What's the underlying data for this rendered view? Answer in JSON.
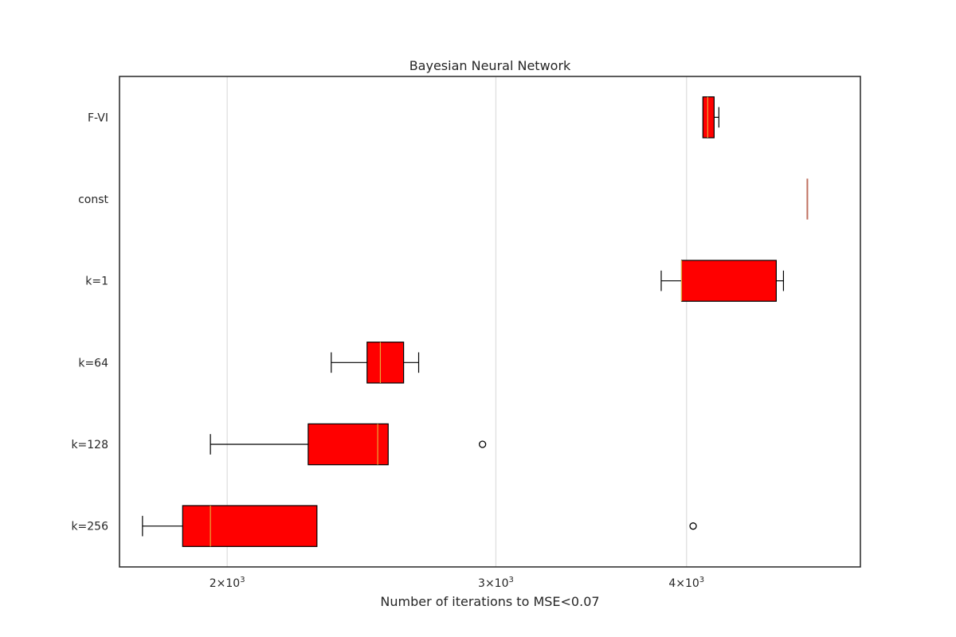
{
  "chart_data": {
    "type": "boxplot",
    "orientation": "horizontal",
    "title": "Bayesian Neural Network",
    "xlabel": "Number of iterations to MSE<0.07",
    "ylabel": "",
    "xscale": "log",
    "xlim": [
      1700,
      5200
    ],
    "xticks": [
      {
        "value": 2000,
        "base": "2",
        "exp": "3"
      },
      {
        "value": 3000,
        "base": "3",
        "exp": "3"
      },
      {
        "value": 4000,
        "base": "4",
        "exp": "3"
      }
    ],
    "grid": "vertical",
    "categories": [
      "F-VI",
      "const",
      "k=1",
      "k=64",
      "k=128",
      "k=256"
    ],
    "boxes": [
      {
        "label": "F-VI",
        "whislo": 4100,
        "q1": 4100,
        "med": 4130,
        "q3": 4170,
        "whishi": 4200,
        "fliers": []
      },
      {
        "label": "const",
        "whislo": 4800,
        "q1": 4800,
        "med": 4800,
        "q3": 4800,
        "whishi": 4800,
        "fliers": []
      },
      {
        "label": "k=1",
        "whislo": 3850,
        "q1": 3970,
        "med": 3970,
        "q3": 4580,
        "whishi": 4630,
        "fliers": []
      },
      {
        "label": "k=64",
        "whislo": 2340,
        "q1": 2470,
        "med": 2520,
        "q3": 2610,
        "whishi": 2670,
        "fliers": []
      },
      {
        "label": "k=128",
        "whislo": 1950,
        "q1": 2260,
        "med": 2510,
        "q3": 2550,
        "whishi": 2550,
        "fliers": [
          2940
        ]
      },
      {
        "label": "k=256",
        "whislo": 1760,
        "q1": 1870,
        "med": 1950,
        "q3": 2290,
        "whishi": 2290,
        "fliers": [
          4040
        ]
      }
    ],
    "colors": {
      "box_fill": "#ff0000",
      "box_edge": "#000000",
      "median": "#e8a838",
      "const_line": "#c07060",
      "grid": "#dddddd",
      "frame": "#262626"
    }
  }
}
